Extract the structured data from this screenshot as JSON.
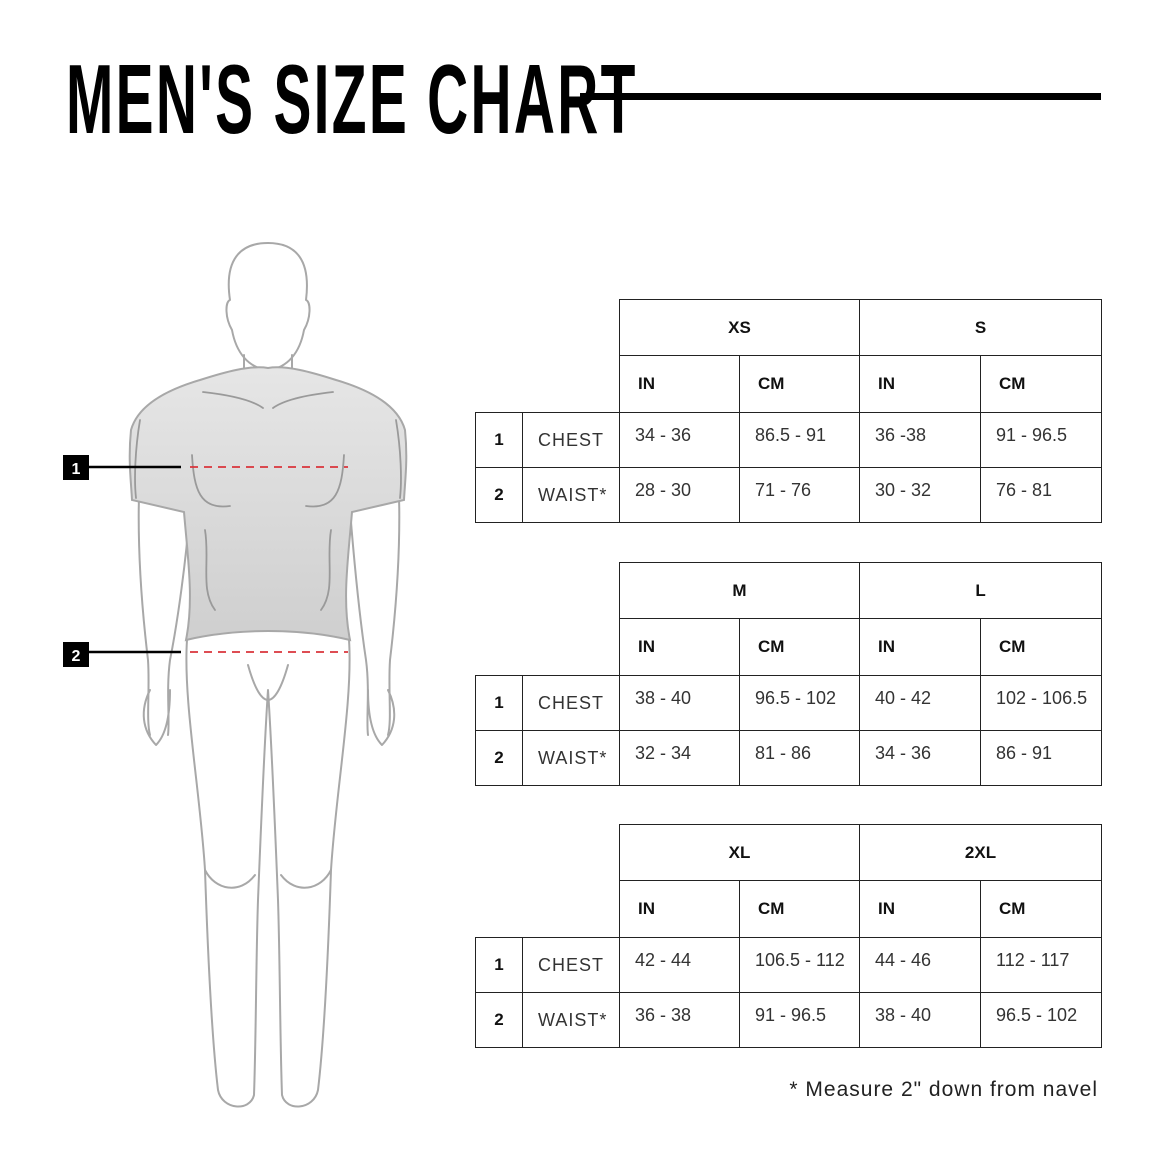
{
  "title": "MEN'S SIZE CHART",
  "figure": {
    "markers": [
      "1",
      "2"
    ],
    "dash_color": "#d9343b",
    "shirt_color": "#dcdcdc"
  },
  "tables": [
    {
      "sizes": [
        "XS",
        "S"
      ],
      "units": [
        "IN",
        "CM",
        "IN",
        "CM"
      ],
      "rows": [
        {
          "num": "1",
          "label": "CHEST",
          "values": [
            "34 - 36",
            "86.5 - 91",
            "36 -38",
            "91 - 96.5"
          ]
        },
        {
          "num": "2",
          "label": "WAIST*",
          "values": [
            "28 - 30",
            "71 - 76",
            "30 - 32",
            "76 - 81"
          ]
        }
      ]
    },
    {
      "sizes": [
        "M",
        "L"
      ],
      "units": [
        "IN",
        "CM",
        "IN",
        "CM"
      ],
      "rows": [
        {
          "num": "1",
          "label": "CHEST",
          "values": [
            "38 - 40",
            "96.5 - 102",
            "40 - 42",
            "102 - 106.5"
          ]
        },
        {
          "num": "2",
          "label": "WAIST*",
          "values": [
            "32 - 34",
            "81 - 86",
            "34 - 36",
            "86 - 91"
          ]
        }
      ]
    },
    {
      "sizes": [
        "XL",
        "2XL"
      ],
      "units": [
        "IN",
        "CM",
        "IN",
        "CM"
      ],
      "rows": [
        {
          "num": "1",
          "label": "CHEST",
          "values": [
            "42 - 44",
            "106.5 - 112",
            "44 - 46",
            "112 - 117"
          ]
        },
        {
          "num": "2",
          "label": "WAIST*",
          "values": [
            "36 - 38",
            "91 - 96.5",
            "38 - 40",
            "96.5 - 102"
          ]
        }
      ]
    }
  ],
  "footnote": "* Measure 2\" down from navel"
}
